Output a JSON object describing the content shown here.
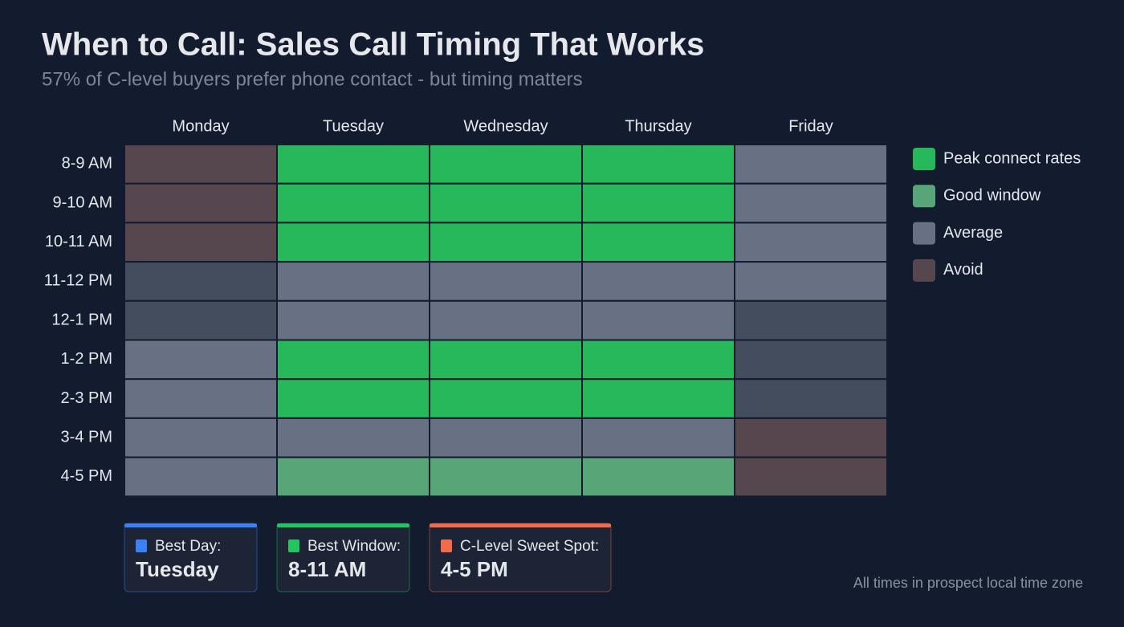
{
  "chart_data": {
    "type": "heatmap",
    "title": "When to Call: Sales Call Timing That Works",
    "subtitle": "57% of C-level buyers prefer phone contact - but timing matters",
    "x": [
      "Monday",
      "Tuesday",
      "Wednesday",
      "Thursday",
      "Friday"
    ],
    "y": [
      "8-9 AM",
      "9-10 AM",
      "10-11 AM",
      "11-12 PM",
      "12-1 PM",
      "1-2 PM",
      "2-3 PM",
      "3-4 PM",
      "4-5 PM"
    ],
    "legend": [
      {
        "name": "Peak connect rates",
        "color": "#27b85c"
      },
      {
        "name": "Good window",
        "color": "#58a577"
      },
      {
        "name": "Average",
        "color": "#687184"
      },
      {
        "name": "Avoid",
        "color": "#56464d"
      }
    ],
    "null_color": "#434d5e",
    "values": [
      [
        "Avoid",
        "Peak connect rates",
        "Peak connect rates",
        "Peak connect rates",
        "Average"
      ],
      [
        "Avoid",
        "Peak connect rates",
        "Peak connect rates",
        "Peak connect rates",
        "Average"
      ],
      [
        "Avoid",
        "Peak connect rates",
        "Peak connect rates",
        "Peak connect rates",
        "Average"
      ],
      [
        null,
        "Average",
        "Average",
        "Average",
        "Average"
      ],
      [
        null,
        "Average",
        "Average",
        "Average",
        null
      ],
      [
        "Average",
        "Peak connect rates",
        "Peak connect rates",
        "Peak connect rates",
        null
      ],
      [
        "Average",
        "Peak connect rates",
        "Peak connect rates",
        "Peak connect rates",
        null
      ],
      [
        "Average",
        "Average",
        "Average",
        "Average",
        "Avoid"
      ],
      [
        "Average",
        "Good window",
        "Good window",
        "Good window",
        "Avoid"
      ]
    ],
    "cards": [
      {
        "label": "Best Day:",
        "value": "Tuesday",
        "color": "#3b82f6"
      },
      {
        "label": "Best Window:",
        "value": "8-11 AM",
        "color": "#22c55e"
      },
      {
        "label": "C-Level Sweet Spot:",
        "value": "4-5 PM",
        "color": "#f26b4a"
      }
    ],
    "footnote": "All times in prospect local time zone"
  }
}
